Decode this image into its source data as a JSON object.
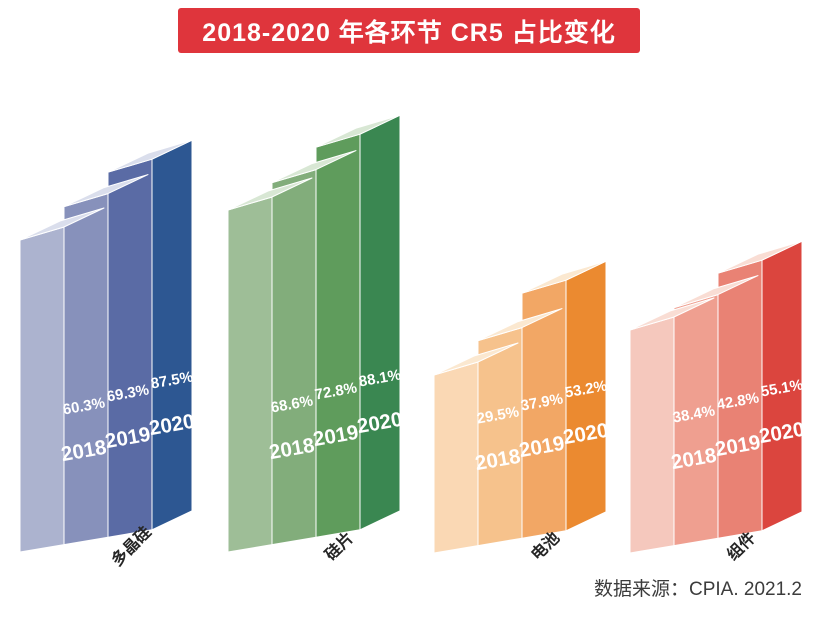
{
  "title": "2018-2020 年各环节 CR5 占比变化",
  "source": "数据来源：CPIA. 2021.2",
  "colors": {
    "banner": "#DF353C",
    "banner_text": "#FFFFFF",
    "group_label_text": "#262626",
    "bar_text": "#FFFFFF",
    "source_text": "#3C3C3C",
    "background": "#FFFFFF"
  },
  "chart_data": {
    "type": "bar",
    "variant": "3d-grouped-staircase",
    "title": "2018-2020 年各环节 CR5 占比变化",
    "categories": [
      "2018",
      "2019",
      "2020"
    ],
    "value_suffix": "%",
    "axes": "none",
    "grid": false,
    "legend_position": "none",
    "series": [
      {
        "name": "多晶硅",
        "values": [
          60.3,
          69.3,
          87.5
        ],
        "palette": {
          "fronts": [
            "#ACB3CF",
            "#8791BB",
            "#5A6BA5"
          ],
          "side": "#2D5792",
          "top": "#DADEEC"
        }
      },
      {
        "name": "硅片",
        "values": [
          68.6,
          72.8,
          88.1
        ],
        "palette": {
          "fronts": [
            "#9EBE97",
            "#82AD7B",
            "#5F9C5C"
          ],
          "side": "#3A8751",
          "top": "#D8E7D4"
        }
      },
      {
        "name": "电池",
        "values": [
          29.5,
          37.9,
          53.2
        ],
        "palette": {
          "fronts": [
            "#FAD8B4",
            "#F6C28C",
            "#F2A765"
          ],
          "side": "#EB8A30",
          "top": "#FBE8D0"
        }
      },
      {
        "name": "组件",
        "values": [
          38.4,
          42.8,
          55.1
        ],
        "palette": {
          "fronts": [
            "#F5C8BD",
            "#EF9F90",
            "#E98274"
          ],
          "side": "#DB453E",
          "top": "#F9DDD4"
        }
      }
    ]
  }
}
